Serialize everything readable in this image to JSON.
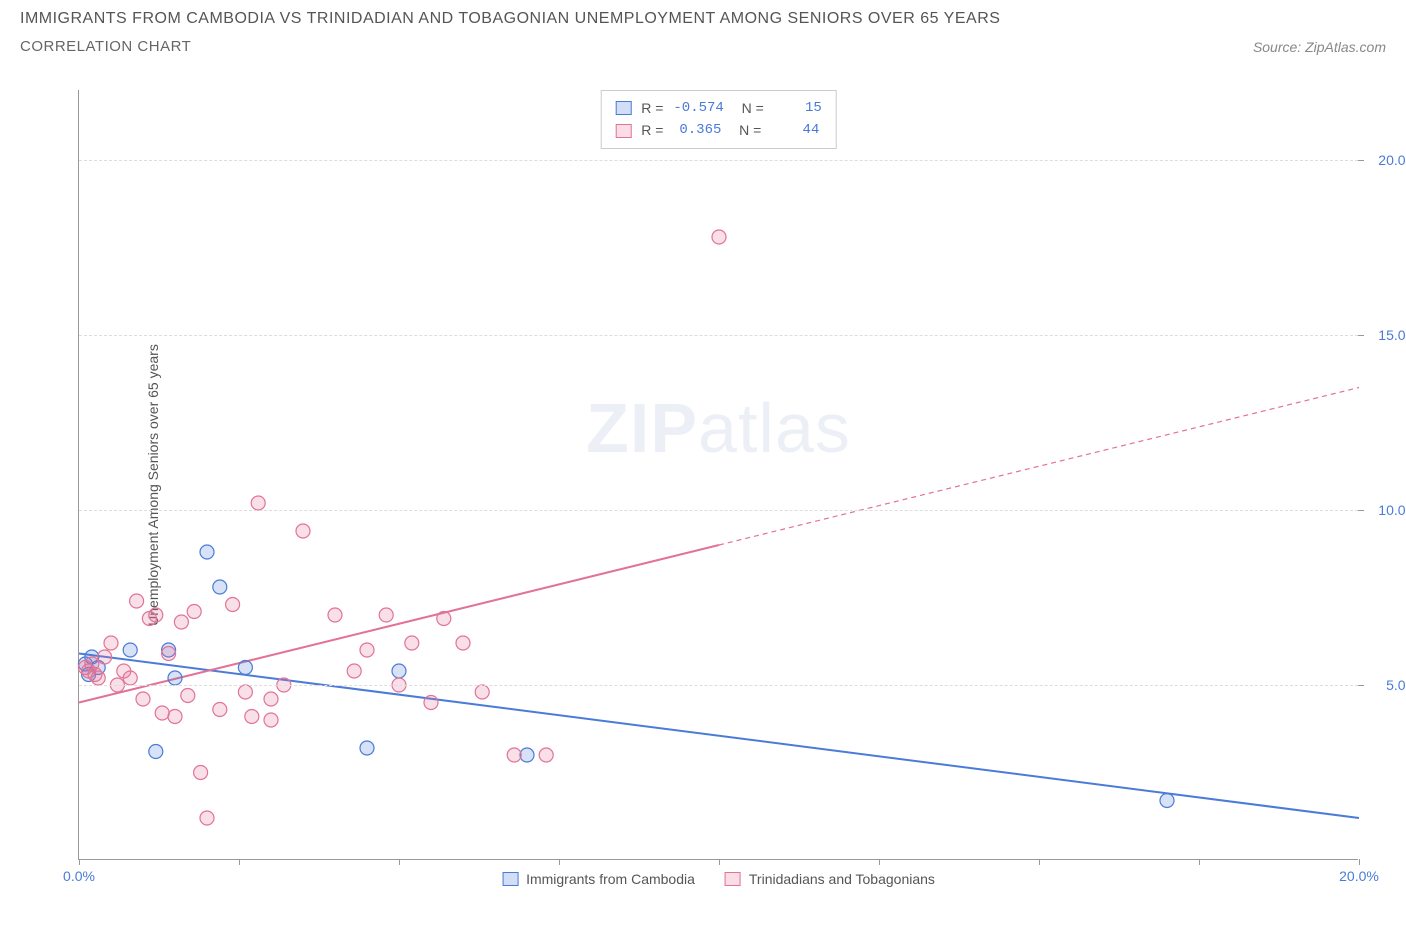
{
  "title": "IMMIGRANTS FROM CAMBODIA VS TRINIDADIAN AND TOBAGONIAN UNEMPLOYMENT AMONG SENIORS OVER 65 YEARS",
  "subtitle": "CORRELATION CHART",
  "source": "Source: ZipAtlas.com",
  "ylabel": "Unemployment Among Seniors over 65 years",
  "watermark_bold": "ZIP",
  "watermark_rest": "atlas",
  "chart": {
    "type": "scatter",
    "xlim": [
      0,
      20
    ],
    "ylim": [
      0,
      22
    ],
    "xticks": [
      0,
      2.5,
      5,
      7.5,
      10,
      12.5,
      15,
      17.5,
      20
    ],
    "xtick_labels": {
      "0": "0.0%",
      "20": "20.0%"
    },
    "yticks_right": [
      5,
      10,
      15,
      20
    ],
    "ytick_labels_right": {
      "5": "5.0%",
      "10": "10.0%",
      "15": "15.0%",
      "20": "20.0%"
    },
    "gridlines_y": [
      5,
      10,
      15,
      20
    ],
    "background_color": "#ffffff",
    "grid_color": "#dddddd",
    "marker_radius": 7,
    "marker_stroke_width": 1.2,
    "line_width": 2,
    "series": [
      {
        "name": "Immigrants from Cambodia",
        "color": "#4a7bd8",
        "fill": "rgba(74,123,216,0.22)",
        "R": "-0.574",
        "N": "15",
        "points": [
          [
            0.1,
            5.6
          ],
          [
            0.15,
            5.3
          ],
          [
            0.2,
            5.8
          ],
          [
            0.3,
            5.5
          ],
          [
            0.8,
            6.0
          ],
          [
            1.4,
            6.0
          ],
          [
            1.5,
            5.2
          ],
          [
            2.0,
            8.8
          ],
          [
            2.2,
            7.8
          ],
          [
            2.6,
            5.5
          ],
          [
            1.2,
            3.1
          ],
          [
            4.5,
            3.2
          ],
          [
            5.0,
            5.4
          ],
          [
            7.0,
            3.0
          ],
          [
            17.0,
            1.7
          ]
        ],
        "trend": {
          "x1": 0,
          "y1": 5.9,
          "x2": 20,
          "y2": 1.2,
          "dash_after_x": null
        }
      },
      {
        "name": "Trinidadians and Tobagonians",
        "color": "#e27396",
        "fill": "rgba(226,115,150,0.22)",
        "R": "0.365",
        "N": "44",
        "points": [
          [
            0.1,
            5.5
          ],
          [
            0.15,
            5.4
          ],
          [
            0.2,
            5.6
          ],
          [
            0.25,
            5.3
          ],
          [
            0.3,
            5.2
          ],
          [
            0.4,
            5.8
          ],
          [
            0.5,
            6.2
          ],
          [
            0.6,
            5.0
          ],
          [
            0.7,
            5.4
          ],
          [
            0.8,
            5.2
          ],
          [
            0.9,
            7.4
          ],
          [
            1.0,
            4.6
          ],
          [
            1.1,
            6.9
          ],
          [
            1.2,
            7.0
          ],
          [
            1.3,
            4.2
          ],
          [
            1.4,
            5.9
          ],
          [
            1.5,
            4.1
          ],
          [
            1.6,
            6.8
          ],
          [
            1.7,
            4.7
          ],
          [
            1.8,
            7.1
          ],
          [
            1.9,
            2.5
          ],
          [
            2.0,
            1.2
          ],
          [
            2.2,
            4.3
          ],
          [
            2.4,
            7.3
          ],
          [
            2.6,
            4.8
          ],
          [
            2.7,
            4.1
          ],
          [
            2.8,
            10.2
          ],
          [
            3.0,
            4.6
          ],
          [
            3.2,
            5.0
          ],
          [
            3.0,
            4.0
          ],
          [
            3.5,
            9.4
          ],
          [
            4.0,
            7.0
          ],
          [
            4.3,
            5.4
          ],
          [
            4.5,
            6.0
          ],
          [
            4.8,
            7.0
          ],
          [
            5.0,
            5.0
          ],
          [
            5.2,
            6.2
          ],
          [
            5.5,
            4.5
          ],
          [
            5.7,
            6.9
          ],
          [
            6.0,
            6.2
          ],
          [
            6.3,
            4.8
          ],
          [
            6.8,
            3.0
          ],
          [
            7.3,
            3.0
          ],
          [
            10.0,
            17.8
          ]
        ],
        "trend": {
          "x1": 0,
          "y1": 4.5,
          "x2": 20,
          "y2": 13.5,
          "dash_after_x": 10
        }
      }
    ]
  },
  "stats_box": {
    "rows": [
      {
        "swatch": "blue",
        "R": "-0.574",
        "N": "15"
      },
      {
        "swatch": "pink",
        "R": "0.365",
        "N": "44"
      }
    ]
  },
  "bottom_legend": [
    {
      "swatch": "blue",
      "label": "Immigrants from Cambodia"
    },
    {
      "swatch": "pink",
      "label": "Trinidadians and Tobagonians"
    }
  ]
}
